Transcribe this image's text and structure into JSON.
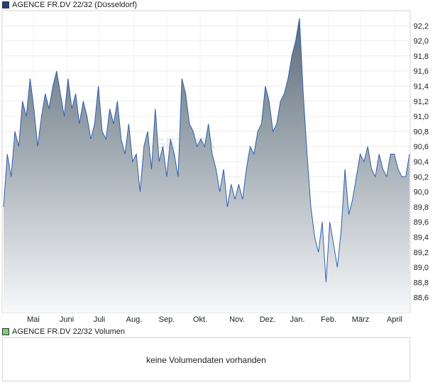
{
  "price_legend": {
    "label": "AGENCE FR.DV 22/32 (Düsseldorf)",
    "color": "#1f3f7a"
  },
  "volume_legend": {
    "label": "AGENCE FR.DV 22/32 Volumen",
    "color": "#7ccf6f"
  },
  "volume_panel": {
    "message": "keine Volumendaten vorhanden"
  },
  "watermark": {
    "text": "GETTEX"
  },
  "chart_data": {
    "type": "area",
    "title": "AGENCE FR.DV 22/32 (Düsseldorf)",
    "xlabel": "",
    "ylabel": "",
    "ylim": [
      88.4,
      92.4
    ],
    "yticks": [
      "92,2",
      "92,0",
      "91,8",
      "91,6",
      "91,4",
      "91,2",
      "91,0",
      "90,8",
      "90,6",
      "90,4",
      "90,2",
      "90,0",
      "89,8",
      "89,6",
      "89,4",
      "89,2",
      "89,0",
      "88,8",
      "88,6"
    ],
    "month_labels": [
      "Mai",
      "Juni",
      "Juli",
      "Aug.",
      "Sep.",
      "Okt.",
      "Nov.",
      "Dez.",
      "Jan.",
      "Feb.",
      "März",
      "April"
    ],
    "grid": true,
    "legend": "top-left",
    "colors": {
      "line": "#2f5fae",
      "fill_top": "#5b6b78",
      "fill_bottom": "#f7f8fa"
    },
    "series": [
      {
        "name": "AGENCE FR.DV 22/32 (Düsseldorf)",
        "x": [
          "Apr",
          "Apr",
          "Apr",
          "Apr",
          "Apr",
          "Mai",
          "Mai",
          "Mai",
          "Mai",
          "Mai",
          "Mai",
          "Mai",
          "Mai",
          "Mai",
          "Mai",
          "Jun",
          "Jun",
          "Jun",
          "Jun",
          "Jun",
          "Jun",
          "Jun",
          "Jun",
          "Jun",
          "Jul",
          "Jul",
          "Jul",
          "Jul",
          "Jul",
          "Jul",
          "Jul",
          "Jul",
          "Jul",
          "Aug",
          "Aug",
          "Aug",
          "Aug",
          "Aug",
          "Aug",
          "Aug",
          "Aug",
          "Aug",
          "Sep",
          "Sep",
          "Sep",
          "Sep",
          "Sep",
          "Sep",
          "Sep",
          "Sep",
          "Sep",
          "Okt",
          "Okt",
          "Okt",
          "Okt",
          "Okt",
          "Okt",
          "Okt",
          "Okt",
          "Okt",
          "Nov",
          "Nov",
          "Nov",
          "Nov",
          "Nov",
          "Nov",
          "Nov",
          "Nov",
          "Nov",
          "Dez",
          "Dez",
          "Dez",
          "Dez",
          "Dez",
          "Dez",
          "Jan",
          "Jan",
          "Jan",
          "Jan",
          "Jan",
          "Jan",
          "Jan",
          "Jan",
          "Feb",
          "Feb",
          "Feb",
          "Feb",
          "Feb",
          "Feb",
          "Feb",
          "Feb",
          "Feb",
          "Mär",
          "Mär",
          "Mär",
          "Mär",
          "Mär",
          "Mär",
          "Mär",
          "Mär",
          "Apr",
          "Apr",
          "Apr",
          "Apr",
          "Apr",
          "Apr",
          "Apr",
          "Apr"
        ],
        "values": [
          89.8,
          90.5,
          90.2,
          90.8,
          90.6,
          91.2,
          91.0,
          91.5,
          91.1,
          90.6,
          91.0,
          91.3,
          91.1,
          91.4,
          91.6,
          91.3,
          91.0,
          91.5,
          91.1,
          91.3,
          90.9,
          91.2,
          91.0,
          90.7,
          90.9,
          91.4,
          90.8,
          90.7,
          91.1,
          90.9,
          91.2,
          90.7,
          90.5,
          90.9,
          90.4,
          90.5,
          90.0,
          90.6,
          90.8,
          90.3,
          91.1,
          90.4,
          90.6,
          90.2,
          90.7,
          90.5,
          90.2,
          91.5,
          91.3,
          90.9,
          90.8,
          90.6,
          90.7,
          90.6,
          90.9,
          90.5,
          90.3,
          90.0,
          90.3,
          89.8,
          90.1,
          89.9,
          90.1,
          89.9,
          90.3,
          90.6,
          90.5,
          90.8,
          90.9,
          91.4,
          91.2,
          90.8,
          90.9,
          91.2,
          91.3,
          91.5,
          91.8,
          92.0,
          92.3,
          91.3,
          90.5,
          89.8,
          89.4,
          89.2,
          89.6,
          88.8,
          89.6,
          89.3,
          89.0,
          89.5,
          90.3,
          89.7,
          89.9,
          90.2,
          90.5,
          90.4,
          90.6,
          90.3,
          90.2,
          90.5,
          90.3,
          90.2,
          90.5,
          90.5,
          90.3,
          90.2,
          90.2,
          90.5
        ]
      }
    ]
  }
}
